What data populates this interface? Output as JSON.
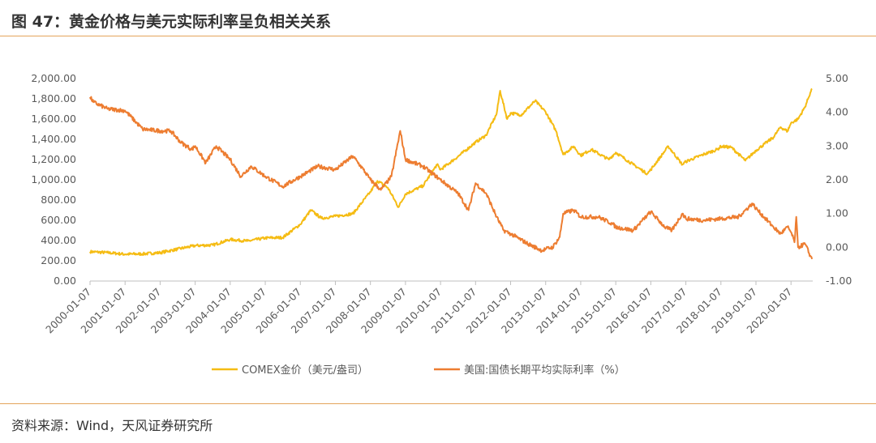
{
  "title": "图 47：黄金价格与美元实际利率呈负相关关系",
  "source": "资料来源：Wind，天风证券研究所",
  "chart_data": {
    "type": "line",
    "dual_axis": true,
    "left_axis": {
      "ylim": [
        0,
        2000
      ],
      "ticks": [
        "0.00",
        "200.00",
        "400.00",
        "600.00",
        "800.00",
        "1,000.00",
        "1,200.00",
        "1,400.00",
        "1,600.00",
        "1,800.00",
        "2,000.00"
      ]
    },
    "right_axis": {
      "ylim": [
        -1,
        5
      ],
      "ticks": [
        "-1.00",
        "0.00",
        "1.00",
        "2.00",
        "3.00",
        "4.00",
        "5.00"
      ]
    },
    "x_ticks": [
      "2000-01-07",
      "2001-01-07",
      "2002-01-07",
      "2003-01-07",
      "2004-01-07",
      "2005-01-07",
      "2006-01-07",
      "2007-01-07",
      "2008-01-07",
      "2009-01-07",
      "2010-01-07",
      "2011-01-07",
      "2012-01-07",
      "2013-01-07",
      "2014-01-07",
      "2015-01-07",
      "2016-01-07",
      "2017-01-07",
      "2018-01-07",
      "2019-01-07",
      "2020-01-07"
    ],
    "legend_position": "bottom",
    "grid": false,
    "series": [
      {
        "name": "COMEX金价（美元/盎司）",
        "axis": "left",
        "color": "#F5BC14",
        "points": [
          [
            2000.0,
            290
          ],
          [
            2000.5,
            280
          ],
          [
            2001.0,
            265
          ],
          [
            2001.5,
            268
          ],
          [
            2002.0,
            280
          ],
          [
            2002.5,
            315
          ],
          [
            2003.0,
            350
          ],
          [
            2003.5,
            355
          ],
          [
            2004.0,
            410
          ],
          [
            2004.5,
            395
          ],
          [
            2005.0,
            425
          ],
          [
            2005.5,
            430
          ],
          [
            2006.0,
            560
          ],
          [
            2006.3,
            700
          ],
          [
            2006.6,
            620
          ],
          [
            2007.0,
            640
          ],
          [
            2007.5,
            665
          ],
          [
            2008.0,
            880
          ],
          [
            2008.2,
            990
          ],
          [
            2008.5,
            920
          ],
          [
            2008.8,
            730
          ],
          [
            2009.0,
            860
          ],
          [
            2009.5,
            940
          ],
          [
            2009.9,
            1150
          ],
          [
            2010.0,
            1100
          ],
          [
            2010.5,
            1230
          ],
          [
            2011.0,
            1370
          ],
          [
            2011.3,
            1440
          ],
          [
            2011.6,
            1650
          ],
          [
            2011.7,
            1880
          ],
          [
            2011.9,
            1600
          ],
          [
            2012.0,
            1660
          ],
          [
            2012.3,
            1640
          ],
          [
            2012.7,
            1780
          ],
          [
            2013.0,
            1670
          ],
          [
            2013.3,
            1480
          ],
          [
            2013.5,
            1250
          ],
          [
            2013.8,
            1330
          ],
          [
            2014.0,
            1240
          ],
          [
            2014.3,
            1300
          ],
          [
            2014.8,
            1200
          ],
          [
            2015.0,
            1270
          ],
          [
            2015.5,
            1150
          ],
          [
            2015.9,
            1060
          ],
          [
            2016.0,
            1100
          ],
          [
            2016.5,
            1330
          ],
          [
            2016.9,
            1150
          ],
          [
            2017.0,
            1180
          ],
          [
            2017.5,
            1250
          ],
          [
            2017.9,
            1300
          ],
          [
            2018.0,
            1330
          ],
          [
            2018.3,
            1320
          ],
          [
            2018.7,
            1190
          ],
          [
            2019.0,
            1290
          ],
          [
            2019.5,
            1420
          ],
          [
            2019.7,
            1520
          ],
          [
            2019.9,
            1480
          ],
          [
            2020.0,
            1560
          ],
          [
            2020.2,
            1600
          ],
          [
            2020.4,
            1720
          ],
          [
            2020.55,
            1860
          ],
          [
            2020.6,
            1900
          ]
        ]
      },
      {
        "name": "美国:国债长期平均实际利率（%）",
        "axis": "right",
        "color": "#ED7D31",
        "points": [
          [
            2000.0,
            4.45
          ],
          [
            2000.1,
            4.3
          ],
          [
            2000.5,
            4.1
          ],
          [
            2001.0,
            4.05
          ],
          [
            2001.5,
            3.5
          ],
          [
            2002.0,
            3.45
          ],
          [
            2002.3,
            3.45
          ],
          [
            2002.6,
            3.1
          ],
          [
            2002.9,
            2.9
          ],
          [
            2003.0,
            3.0
          ],
          [
            2003.3,
            2.5
          ],
          [
            2003.6,
            3.0
          ],
          [
            2004.0,
            2.6
          ],
          [
            2004.3,
            2.1
          ],
          [
            2004.6,
            2.4
          ],
          [
            2005.0,
            2.1
          ],
          [
            2005.5,
            1.8
          ],
          [
            2006.0,
            2.1
          ],
          [
            2006.5,
            2.4
          ],
          [
            2007.0,
            2.3
          ],
          [
            2007.5,
            2.7
          ],
          [
            2007.8,
            2.3
          ],
          [
            2008.0,
            2.0
          ],
          [
            2008.3,
            1.7
          ],
          [
            2008.6,
            2.1
          ],
          [
            2008.85,
            3.45
          ],
          [
            2009.0,
            2.6
          ],
          [
            2009.5,
            2.4
          ],
          [
            2010.0,
            2.0
          ],
          [
            2010.5,
            1.6
          ],
          [
            2010.8,
            1.1
          ],
          [
            2011.0,
            1.9
          ],
          [
            2011.3,
            1.6
          ],
          [
            2011.6,
            0.9
          ],
          [
            2011.8,
            0.5
          ],
          [
            2012.0,
            0.4
          ],
          [
            2012.5,
            0.1
          ],
          [
            2012.9,
            -0.1
          ],
          [
            2013.0,
            -0.05
          ],
          [
            2013.2,
            0.0
          ],
          [
            2013.4,
            0.3
          ],
          [
            2013.5,
            1.0
          ],
          [
            2013.8,
            1.1
          ],
          [
            2014.0,
            0.9
          ],
          [
            2014.5,
            0.9
          ],
          [
            2014.9,
            0.7
          ],
          [
            2015.0,
            0.6
          ],
          [
            2015.5,
            0.5
          ],
          [
            2015.9,
            0.95
          ],
          [
            2016.0,
            1.05
          ],
          [
            2016.4,
            0.6
          ],
          [
            2016.6,
            0.5
          ],
          [
            2016.9,
            1.0
          ],
          [
            2017.0,
            0.85
          ],
          [
            2017.5,
            0.8
          ],
          [
            2018.0,
            0.85
          ],
          [
            2018.5,
            0.9
          ],
          [
            2018.9,
            1.3
          ],
          [
            2019.0,
            1.15
          ],
          [
            2019.5,
            0.6
          ],
          [
            2019.7,
            0.4
          ],
          [
            2019.9,
            0.6
          ],
          [
            2020.0,
            0.45
          ],
          [
            2020.1,
            0.15
          ],
          [
            2020.15,
            0.9
          ],
          [
            2020.2,
            0.0
          ],
          [
            2020.4,
            0.1
          ],
          [
            2020.55,
            -0.25
          ],
          [
            2020.6,
            -0.35
          ]
        ]
      }
    ]
  }
}
